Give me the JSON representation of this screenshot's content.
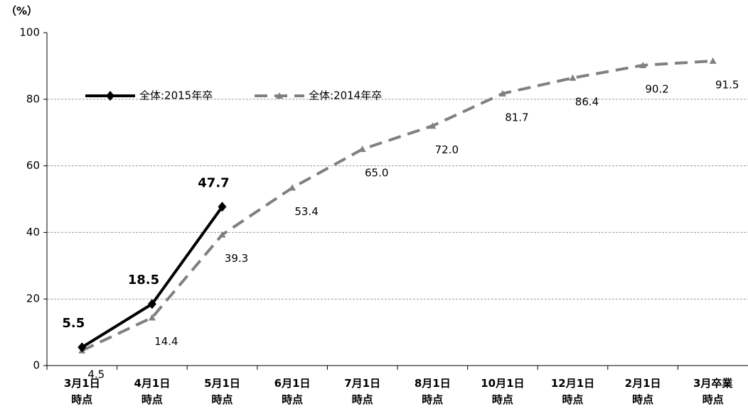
{
  "chart_data": {
    "type": "line",
    "y_label": "（%）",
    "categories": [
      "3月1日\n時点",
      "4月1日\n時点",
      "5月1日\n時点",
      "6月1日\n時点",
      "7月1日\n時点",
      "8月1日\n時点",
      "10月1日\n時点",
      "12月1日\n時点",
      "2月1日\n時点",
      "3月卒業\n時点"
    ],
    "series": [
      {
        "name": "全体:2015年卒",
        "color": "#000000",
        "dashed": false,
        "marker": "diamond",
        "values": [
          5.5,
          18.5,
          47.7,
          null,
          null,
          null,
          null,
          null,
          null,
          null
        ],
        "value_labels": [
          "5.5",
          "18.5",
          "47.7",
          null,
          null,
          null,
          null,
          null,
          null,
          null
        ]
      },
      {
        "name": "全体:2014年卒",
        "color": "#808080",
        "dashed": true,
        "marker": "triangle",
        "values": [
          4.5,
          14.4,
          39.3,
          53.4,
          65.0,
          72.0,
          81.7,
          86.4,
          90.2,
          91.5
        ],
        "value_labels": [
          "4.5",
          "14.4",
          "39.3",
          "53.4",
          "65.0",
          "72.0",
          "81.7",
          "86.4",
          "90.2",
          "91.5"
        ]
      }
    ],
    "ylim": [
      0,
      100
    ],
    "yticks": [
      0,
      20,
      40,
      60,
      80,
      100
    ],
    "grid": true,
    "legend": "top-left"
  }
}
